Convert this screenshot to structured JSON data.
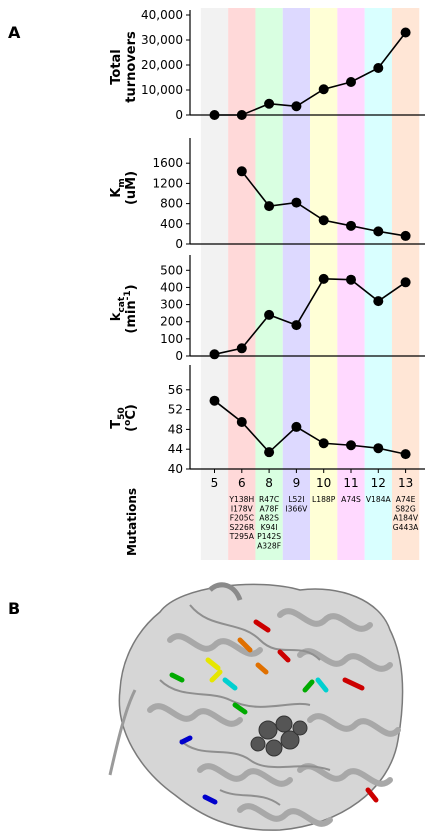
{
  "panel_labels": [
    "A",
    "B"
  ],
  "mutations_label": "Mutations",
  "chart_data": [
    {
      "type": "line",
      "ylabel": "Total turnovers",
      "categories": [
        "5",
        "6",
        "8",
        "9",
        "10",
        "11",
        "12",
        "13"
      ],
      "values": [
        0,
        0,
        4500,
        3500,
        10300,
        13200,
        18800,
        33000
      ],
      "ylim": [
        0,
        40000
      ],
      "yticks": [
        "0",
        "10,000",
        "20,000",
        "30,000",
        "40,000"
      ]
    },
    {
      "type": "line",
      "ylabel": "Km (uM)",
      "categories": [
        "5",
        "6",
        "8",
        "9",
        "10",
        "11",
        "12",
        "13"
      ],
      "values": [
        null,
        1440,
        750,
        820,
        470,
        360,
        250,
        160
      ],
      "ylim": [
        0,
        2000
      ],
      "yticks": [
        "0",
        "400",
        "800",
        "1200",
        "1600"
      ]
    },
    {
      "type": "line",
      "ylabel": "kcat (min-1)",
      "categories": [
        "5",
        "6",
        "8",
        "9",
        "10",
        "11",
        "12",
        "13"
      ],
      "values": [
        10,
        45,
        240,
        180,
        450,
        445,
        320,
        430
      ],
      "ylim": [
        0,
        560
      ],
      "yticks": [
        "0",
        "100",
        "200",
        "300",
        "400",
        "500"
      ]
    },
    {
      "type": "line",
      "ylabel": "T50 (°C)",
      "categories": [
        "5",
        "6",
        "8",
        "9",
        "10",
        "11",
        "12",
        "13"
      ],
      "values": [
        53.8,
        49.5,
        43.4,
        48.5,
        45.2,
        44.8,
        44.2,
        43.0
      ],
      "ylim": [
        40,
        60
      ],
      "yticks": [
        "40",
        "44",
        "48",
        "52",
        "56"
      ]
    }
  ],
  "mutation_columns": [
    {
      "gen": "5",
      "muts": [],
      "color": "#f2f2f2"
    },
    {
      "gen": "6",
      "muts": [
        "Y138H",
        "I178V",
        "F205C",
        "S226R",
        "T295A"
      ],
      "color": "#ffd9d9"
    },
    {
      "gen": "8",
      "muts": [
        "R47C",
        "A78F",
        "A82S",
        "K94I",
        "P142S",
        "A328F"
      ],
      "color": "#d9ffe1"
    },
    {
      "gen": "9",
      "muts": [
        "L52I",
        "I366V"
      ],
      "color": "#ddd9ff"
    },
    {
      "gen": "10",
      "muts": [
        "L188P"
      ],
      "color": "#ffffd6"
    },
    {
      "gen": "11",
      "muts": [
        "A74S"
      ],
      "color": "#ffd9ff"
    },
    {
      "gen": "12",
      "muts": [
        "V184A"
      ],
      "color": "#d9ffff"
    },
    {
      "gen": "13",
      "muts": [
        "A74E",
        "S82G",
        "A184V",
        "G443A"
      ],
      "color": "#ffe6d6"
    }
  ]
}
